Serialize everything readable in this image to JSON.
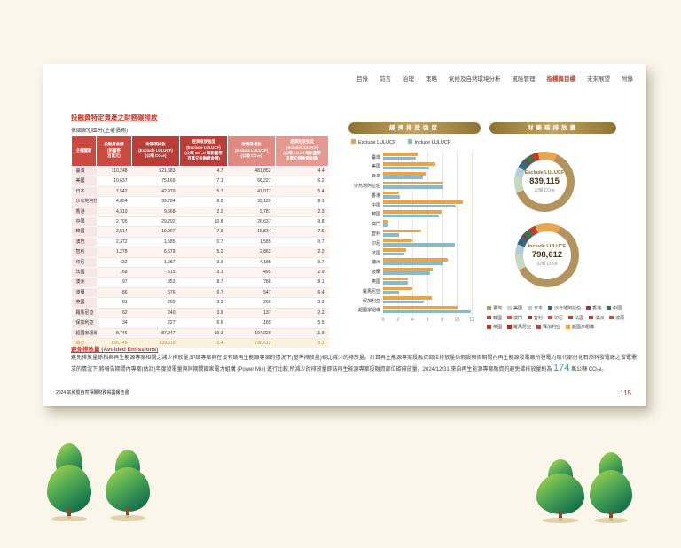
{
  "page": {
    "nav": {
      "items": [
        "目錄",
        "前言",
        "治理",
        "策略",
        "氣候及自然環境分析",
        "風險管理",
        "指標與目標",
        "未來展望",
        "附錄"
      ],
      "active": "指標與目標"
    },
    "title": "投融資特定資產之財務碳排放",
    "subtitle": "依國家別區分(主權債務)",
    "footer": "2024 氣候暨自然相關財務揭露報告書",
    "page_number": "115"
  },
  "table": {
    "headers": [
      "主權國家",
      "投融資金額\n(新臺幣\n百萬元)",
      "財務碳排放\n(Exclude LULUCF)\n(公噸 CO₂e)",
      "經濟排放強度\n(Exclude LULUCF)\n(公噸 CO₂e/ 每新臺幣\n百萬元投融資金額)",
      "財務碳排放\n(Include LULUCF)\n(公噸 CO₂e)",
      "經濟排放強度\n(Include LULUCF)\n(公噸 CO₂e/ 每新臺幣\n百萬元投融資金額)"
    ],
    "rows": [
      [
        "臺灣",
        "110,248",
        "521,683",
        "4.7",
        "481,852",
        "4.4"
      ],
      [
        "美國",
        "10,637",
        "75,169",
        "7.1",
        "66,227",
        "6.2"
      ],
      [
        "日本",
        "7,542",
        "42,979",
        "5.7",
        "41,077",
        "5.4"
      ],
      [
        "沙烏地阿拉伯",
        "4,834",
        "39,784",
        "8.2",
        "39,120",
        "8.1"
      ],
      [
        "香港",
        "4,310",
        "9,668",
        "2.2",
        "9,781",
        "2.3"
      ],
      [
        "中國",
        "2,705",
        "29,292",
        "10.8",
        "26,637",
        "9.8"
      ],
      [
        "韓國",
        "2,514",
        "19,967",
        "7.9",
        "18,834",
        "7.5"
      ],
      [
        "澳門",
        "2,372",
        "1,585",
        "0.7",
        "1,585",
        "0.7"
      ],
      [
        "智利",
        "1,278",
        "6,679",
        "5.2",
        "2,863",
        "2.2"
      ],
      [
        "印尼",
        "432",
        "1,687",
        "3.9",
        "4,185",
        "9.7"
      ],
      [
        "法國",
        "168",
        "515",
        "3.1",
        "495",
        "2.9"
      ],
      [
        "澳洲",
        "97",
        "853",
        "8.7",
        "788",
        "8.1"
      ],
      [
        "波蘭",
        "86",
        "576",
        "6.7",
        "547",
        "6.4"
      ],
      [
        "英國",
        "81",
        "265",
        "3.3",
        "266",
        "3.3"
      ],
      [
        "羅馬尼亞",
        "62",
        "240",
        "3.9",
        "137",
        "2.2"
      ],
      [
        "保加利亞",
        "34",
        "227",
        "6.6",
        "189",
        "5.5"
      ],
      [
        "超國家組織",
        "8,746",
        "87,947",
        "10.1",
        "104,029",
        "11.9"
      ]
    ],
    "total": [
      "總計",
      "156,148",
      "839,115",
      "5.4",
      "798,612",
      "5.1"
    ]
  },
  "chart_data": [
    {
      "type": "bar",
      "orientation": "horizontal",
      "title": "經濟排放強度",
      "categories": [
        "臺灣",
        "美國",
        "日本",
        "沙烏地阿拉伯",
        "香港",
        "中國",
        "韓國",
        "澳門",
        "智利",
        "印尼",
        "法國",
        "澳洲",
        "波蘭",
        "英國",
        "羅馬尼亞",
        "保加利亞",
        "超國家組織"
      ],
      "series": [
        {
          "name": "Exclude LULUCF",
          "color": "#e6a44d",
          "values": [
            4.7,
            7.1,
            5.7,
            8.2,
            2.2,
            10.8,
            7.9,
            0.7,
            5.2,
            3.9,
            3.1,
            8.7,
            6.7,
            3.3,
            3.9,
            6.6,
            10.1
          ]
        },
        {
          "name": "Include LULUCF",
          "color": "#8bb9ca",
          "values": [
            4.4,
            6.2,
            5.4,
            8.1,
            2.3,
            9.8,
            7.5,
            0.7,
            2.2,
            9.7,
            2.9,
            8.1,
            6.4,
            3.3,
            2.2,
            5.5,
            11.9
          ]
        }
      ],
      "xlabel": "公噸 CO₂e / 每新臺幣百萬元投融資金額",
      "xlim": [
        0,
        12
      ],
      "xticks": [
        0,
        2,
        4,
        6,
        8,
        10,
        12
      ],
      "grid": true,
      "legend_position": "top"
    },
    {
      "type": "pie",
      "title": "財務碳排放量",
      "categories": [
        "臺灣",
        "美國",
        "日本",
        "沙烏地阿拉伯",
        "香港",
        "中國",
        "韓國",
        "澳門",
        "智利",
        "印尼",
        "法國",
        "澳洲",
        "波蘭",
        "英國",
        "羅馬尼亞",
        "保加利亞",
        "超國家組織"
      ],
      "colors": [
        "#b3945f",
        "#c4dac0",
        "#aecfd9",
        "#3a677e",
        "#9e3036",
        "#2e7c4c",
        "#c23b30",
        "#d94f3d",
        "#a93127",
        "#ce4437",
        "#c0392b",
        "#b03a2e",
        "#c74a3f",
        "#ba3a30",
        "#ad3127",
        "#c24538",
        "#e7a64f"
      ],
      "donuts": [
        {
          "label": "Exclude LULUCF",
          "total_display": "839,115",
          "unit": "公噸 CO₂e",
          "values": [
            521683,
            75169,
            42979,
            39784,
            9668,
            29292,
            19967,
            1585,
            6679,
            1687,
            515,
            853,
            576,
            265,
            240,
            227,
            87947
          ]
        },
        {
          "label": "Include LULUCF",
          "total_display": "798,612",
          "unit": "公噸 CO₂e",
          "values": [
            481852,
            66227,
            41077,
            39120,
            9781,
            26637,
            18834,
            1585,
            2863,
            4185,
            495,
            788,
            547,
            266,
            137,
            189,
            104029
          ]
        }
      ],
      "legend_position": "bottom"
    }
  ],
  "avoided": {
    "heading": "避免排放量 (Avoided Emissions)",
    "text_a": "避免排放量係指與再生能源專案相關之減少排放量,即該專案與在沒有該再生能源專案的情況下(基準排放量)相比減少的排放量。計算再生能源專案投融資部位排放量係假設報告期間內再生能源發電廠所發電力取代部份化石燃料發電廠之發電需求的情況下,將報告期間內專案(估計)年度發電量與同期間國家電力組構 (Power Mix) 進行比較,所減少的排放量即該再生能源專案投融資部位碳排放量。2024/12/31 來自再生能源專案融資的避免碳排放量約為 ",
    "highlight": "174",
    "text_b": " 萬公噸 CO₂e。"
  }
}
